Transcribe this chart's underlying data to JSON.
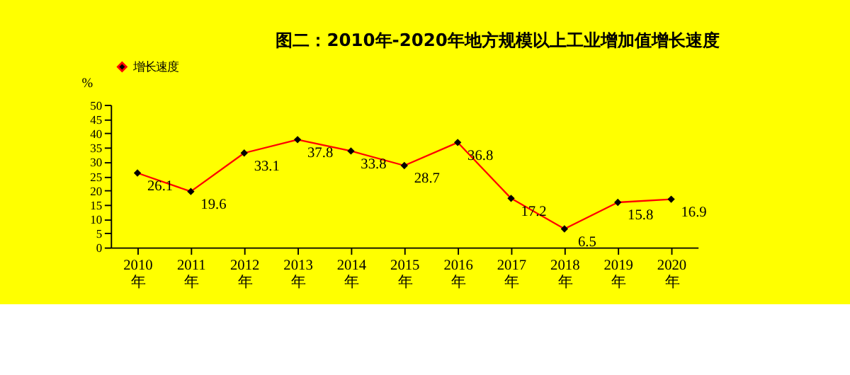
{
  "chart_data": {
    "type": "line",
    "title": "图二：2010年-2020年地方规模以上工业增加值增长速度",
    "ylabel": "%",
    "categories": [
      "2010\n年",
      "2011\n年",
      "2012\n年",
      "2013\n年",
      "2014\n年",
      "2015\n年",
      "2016\n年",
      "2017\n年",
      "2018\n年",
      "2019\n年",
      "2020\n年"
    ],
    "series": [
      {
        "name": "增长速度",
        "color": "#ff0000",
        "values": [
          26.1,
          19.6,
          33.1,
          37.8,
          33.8,
          28.7,
          36.8,
          17.2,
          6.5,
          15.8,
          16.9
        ]
      }
    ],
    "ylim": [
      0,
      50
    ],
    "yticks": [
      0,
      5,
      10,
      15,
      20,
      25,
      30,
      35,
      40,
      45,
      50
    ],
    "data_labels": true,
    "marker": "diamond",
    "legend": "top",
    "grid": false
  }
}
